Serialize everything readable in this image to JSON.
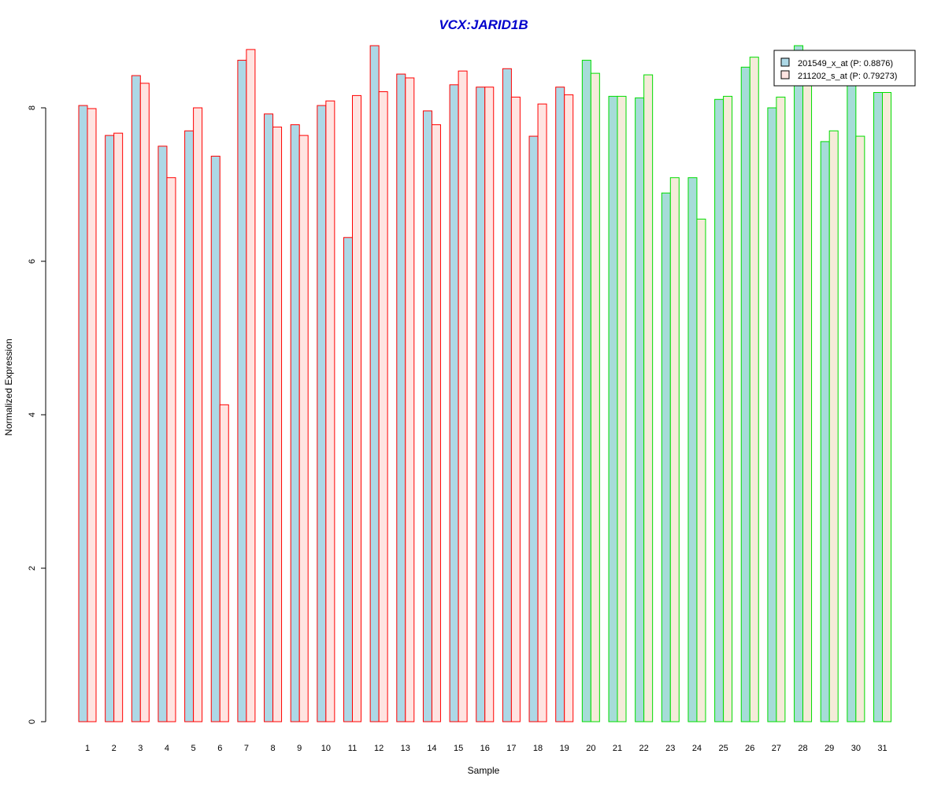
{
  "chart_data": {
    "type": "bar",
    "title": "VCX:JARID1B",
    "xlabel": "Sample",
    "ylabel": "Normalized Expression",
    "ylim": [
      0,
      8.8
    ],
    "yticks": [
      0,
      2,
      4,
      6,
      8
    ],
    "grid": false,
    "legend_position": "top-right",
    "categories": [
      "1",
      "2",
      "3",
      "4",
      "5",
      "6",
      "7",
      "8",
      "9",
      "10",
      "11",
      "12",
      "13",
      "14",
      "15",
      "16",
      "17",
      "18",
      "19",
      "20",
      "21",
      "22",
      "23",
      "24",
      "25",
      "26",
      "27",
      "28",
      "29",
      "30",
      "31"
    ],
    "groups": [
      {
        "from": 1,
        "to": 19,
        "border_color": "#ff0000"
      },
      {
        "from": 20,
        "to": 31,
        "border_color": "#00dd00"
      }
    ],
    "series": [
      {
        "name": "201549_x_at (P: 0.8876)",
        "fill_colors": [
          "#add8e6",
          "#a6dcd8"
        ],
        "values": [
          8.03,
          7.64,
          8.42,
          7.5,
          7.7,
          7.37,
          8.62,
          7.92,
          7.78,
          8.03,
          6.31,
          8.81,
          8.44,
          7.96,
          8.3,
          8.27,
          8.51,
          7.63,
          8.27,
          8.62,
          8.15,
          8.13,
          6.89,
          7.09,
          8.11,
          8.53,
          8.0,
          8.81,
          7.56,
          8.37,
          8.2
        ]
      },
      {
        "name": "211202_s_at (P: 0.79273)",
        "fill_colors": [
          "#ffe4e1",
          "#f5ebd9"
        ],
        "values": [
          7.99,
          7.67,
          8.32,
          7.09,
          8.0,
          4.13,
          8.76,
          7.75,
          7.64,
          8.09,
          8.16,
          8.21,
          8.39,
          7.78,
          8.48,
          8.27,
          8.14,
          8.05,
          8.17,
          8.45,
          8.15,
          8.43,
          7.09,
          6.55,
          8.15,
          8.66,
          8.14,
          8.44,
          7.7,
          7.63,
          8.2
        ]
      }
    ],
    "colors": {
      "title": "#0000cc",
      "axis": "#000000",
      "legend_border": "#000000"
    }
  }
}
